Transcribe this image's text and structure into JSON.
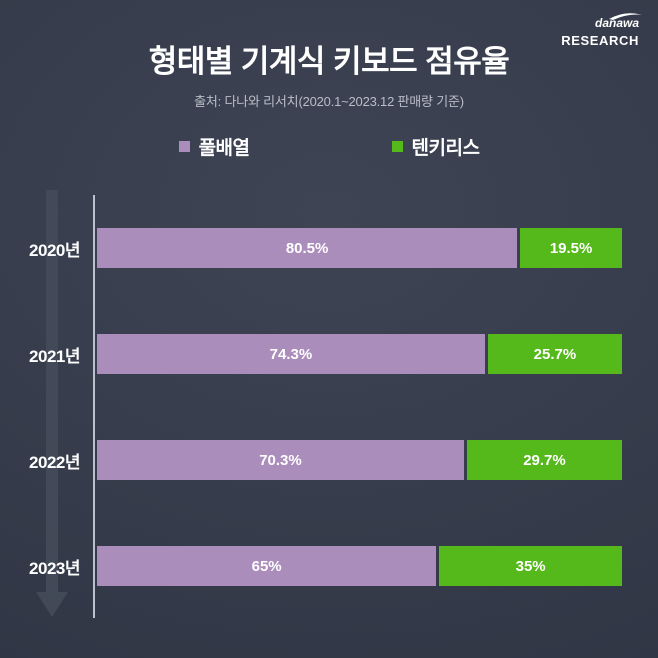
{
  "page": {
    "title": "형태별 기계식 키보드 점유율",
    "subtitle": "출처: 다나와 리서치(2020.1~2023.12 판매량 기준)"
  },
  "logo": {
    "brand": "danawa",
    "sub": "RESEARCH",
    "swoosh_icon": "swoosh-arc"
  },
  "legend": [
    {
      "label": "풀배열",
      "color": "#ab8dbc"
    },
    {
      "label": "텐키리스",
      "color": "#55b81b"
    }
  ],
  "colors": {
    "background_center": "#3e4454",
    "background_edge": "#2e3442",
    "axis": "#bcc2cc",
    "arrow": "#424957",
    "subtitle_text": "#b9bec8",
    "label_text": "#ffffff"
  },
  "chart_data": {
    "type": "bar",
    "orientation": "horizontal-stacked",
    "title": "형태별 기계식 키보드 점유율",
    "source_note": "출처: 다나와 리서치(2020.1~2023.12 판매량 기준)",
    "categories": [
      "2020년",
      "2021년",
      "2022년",
      "2023년"
    ],
    "series": [
      {
        "name": "풀배열",
        "color": "#ab8dbc",
        "values": [
          80.5,
          74.3,
          70.3,
          65
        ],
        "labels": [
          "80.5%",
          "74.3%",
          "70.3%",
          "65%"
        ]
      },
      {
        "name": "텐키리스",
        "color": "#55b81b",
        "values": [
          19.5,
          25.7,
          29.7,
          35
        ],
        "labels": [
          "19.5%",
          "25.7%",
          "29.7%",
          "35%"
        ]
      }
    ],
    "xlim": [
      0,
      100
    ],
    "unit": "%",
    "grid": false,
    "legend_position": "top-center",
    "axis_decoration": "down-arrow-left"
  }
}
